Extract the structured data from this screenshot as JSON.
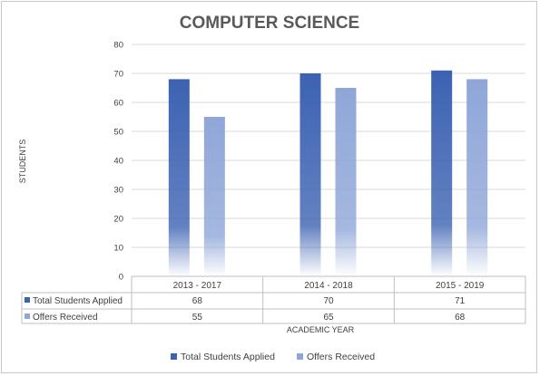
{
  "chart_data": {
    "type": "bar",
    "title": "COMPUTER SCIENCE",
    "xlabel": "ACADEMIC YEAR",
    "ylabel": "STUDENTS",
    "categories": [
      "2013 - 2017",
      "2014 - 2018",
      "2015 - 2019"
    ],
    "series": [
      {
        "name": "Total Students Applied",
        "values": [
          68,
          70,
          71
        ],
        "color": "#3c62b2"
      },
      {
        "name": "Offers Received",
        "values": [
          55,
          65,
          68
        ],
        "color": "#8fa6d8"
      }
    ],
    "ylim": [
      0,
      80
    ],
    "yticks": [
      0,
      10,
      20,
      30,
      40,
      50,
      60,
      70,
      80
    ],
    "grid": true,
    "data_table": true,
    "legend_position": "bottom"
  }
}
